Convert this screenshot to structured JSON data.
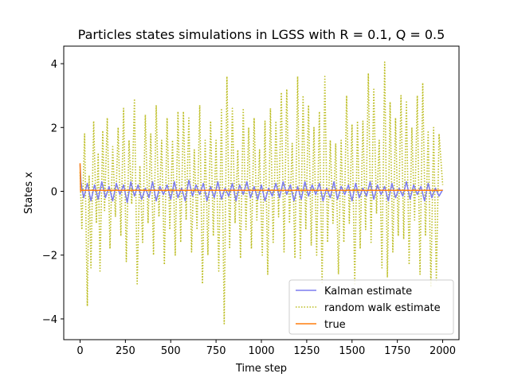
{
  "chart_data": {
    "type": "line",
    "title": "Particles states simulations in LGSS with R = 0.1, Q = 0.5",
    "xlabel": "Time step",
    "ylabel": "States x",
    "xlim": [
      -90,
      2090
    ],
    "ylim": [
      -4.65,
      4.55
    ],
    "xticks": [
      0,
      250,
      500,
      750,
      1000,
      1250,
      1500,
      1750,
      2000
    ],
    "xtick_labels": [
      "0",
      "250",
      "500",
      "750",
      "1000",
      "1250",
      "1500",
      "1750",
      "2000"
    ],
    "yticks": [
      -4,
      -2,
      0,
      2,
      4
    ],
    "ytick_labels": [
      "−4",
      "−2",
      "0",
      "2",
      "4"
    ],
    "grid": false,
    "legend_position": "lower-right",
    "series": [
      {
        "name": "Kalman estimate",
        "color": "#7b7bef",
        "style": "solid",
        "x": [
          0,
          5,
          10,
          20,
          40,
          60,
          80,
          100,
          120,
          140,
          160,
          180,
          200,
          220,
          240,
          260,
          280,
          300,
          320,
          340,
          360,
          380,
          400,
          420,
          440,
          460,
          480,
          500,
          520,
          540,
          560,
          580,
          600,
          620,
          640,
          660,
          680,
          700,
          720,
          740,
          760,
          780,
          800,
          820,
          840,
          860,
          880,
          900,
          920,
          940,
          960,
          980,
          1000,
          1020,
          1040,
          1060,
          1080,
          1100,
          1120,
          1140,
          1160,
          1180,
          1200,
          1220,
          1240,
          1260,
          1280,
          1300,
          1320,
          1340,
          1360,
          1380,
          1400,
          1420,
          1440,
          1460,
          1480,
          1500,
          1520,
          1540,
          1560,
          1580,
          1600,
          1620,
          1640,
          1660,
          1680,
          1700,
          1720,
          1740,
          1760,
          1780,
          1800,
          1820,
          1840,
          1860,
          1880,
          1900,
          1920,
          1940,
          1960,
          1980,
          2000
        ],
        "y": [
          0.85,
          0.3,
          0.1,
          -0.2,
          0.25,
          -0.3,
          0.2,
          -0.25,
          0.3,
          -0.2,
          0.15,
          -0.3,
          0.25,
          -0.1,
          0.2,
          -0.35,
          0.3,
          -0.15,
          0.2,
          -0.25,
          0.1,
          -0.2,
          0.3,
          -0.3,
          0.15,
          -0.1,
          0.2,
          -0.25,
          0.3,
          -0.2,
          0.1,
          -0.3,
          0.35,
          -0.15,
          0.2,
          -0.1,
          0.25,
          -0.3,
          0.15,
          -0.2,
          0.3,
          -0.25,
          0.1,
          -0.15,
          0.25,
          -0.3,
          0.2,
          -0.1,
          0.3,
          -0.2,
          0.15,
          -0.25,
          0.2,
          -0.3,
          0.1,
          -0.15,
          0.25,
          -0.2,
          0.3,
          -0.1,
          0.2,
          -0.3,
          0.15,
          -0.25,
          0.3,
          -0.15,
          0.2,
          -0.1,
          0.25,
          -0.3,
          0.1,
          -0.2,
          0.3,
          -0.25,
          0.15,
          -0.1,
          0.2,
          -0.3,
          0.25,
          -0.2,
          0.1,
          -0.15,
          0.3,
          -0.25,
          0.2,
          -0.1,
          0.15,
          -0.3,
          0.25,
          -0.2,
          0.1,
          -0.15,
          0.3,
          -0.25,
          0.2,
          -0.1,
          0.15,
          -0.3,
          0.25,
          -0.2,
          0.1,
          -0.15,
          0.05
        ]
      },
      {
        "name": "random walk estimate",
        "color": "#bcbd22",
        "style": "dotted",
        "x": [
          0,
          10,
          25,
          40,
          50,
          60,
          75,
          90,
          100,
          110,
          125,
          135,
          150,
          165,
          180,
          195,
          210,
          225,
          240,
          255,
          270,
          285,
          300,
          315,
          330,
          345,
          360,
          375,
          390,
          405,
          420,
          435,
          450,
          465,
          480,
          495,
          510,
          525,
          540,
          555,
          570,
          585,
          600,
          615,
          630,
          645,
          660,
          675,
          690,
          705,
          720,
          735,
          750,
          765,
          780,
          795,
          810,
          825,
          840,
          855,
          870,
          885,
          900,
          915,
          930,
          945,
          960,
          975,
          990,
          1005,
          1020,
          1035,
          1050,
          1065,
          1080,
          1095,
          1110,
          1125,
          1140,
          1155,
          1170,
          1185,
          1200,
          1215,
          1230,
          1245,
          1260,
          1275,
          1290,
          1305,
          1320,
          1335,
          1350,
          1365,
          1380,
          1395,
          1410,
          1425,
          1440,
          1455,
          1470,
          1485,
          1500,
          1515,
          1530,
          1545,
          1560,
          1575,
          1590,
          1605,
          1620,
          1635,
          1650,
          1665,
          1680,
          1695,
          1710,
          1725,
          1740,
          1755,
          1770,
          1785,
          1800,
          1815,
          1830,
          1845,
          1860,
          1875,
          1890,
          1905,
          1920,
          1935,
          1950,
          1965,
          1980,
          2000
        ],
        "y": [
          0.6,
          -1.2,
          1.8,
          -3.6,
          0.5,
          -2.4,
          2.2,
          -1.0,
          1.2,
          -2.5,
          1.9,
          -0.6,
          2.3,
          -1.8,
          1.4,
          -0.8,
          2.0,
          -1.4,
          2.6,
          -2.2,
          1.6,
          -0.4,
          2.9,
          -2.9,
          0.8,
          -1.6,
          2.4,
          -1.0,
          1.8,
          -2.0,
          2.7,
          -0.8,
          1.6,
          -2.3,
          2.3,
          -1.2,
          1.6,
          -2.0,
          2.5,
          -1.6,
          2.5,
          -0.9,
          2.3,
          -1.9,
          1.3,
          -1.2,
          2.7,
          -2.9,
          1.6,
          -2.0,
          2.2,
          -1.4,
          1.6,
          -2.5,
          2.6,
          -4.15,
          3.6,
          -1.8,
          2.6,
          -1.0,
          1.3,
          -2.1,
          2.6,
          -1.2,
          2.0,
          -1.8,
          2.3,
          -0.9,
          1.3,
          -2.0,
          2.2,
          -2.6,
          2.6,
          -1.6,
          2.2,
          -0.8,
          3.1,
          -1.9,
          3.2,
          -1.0,
          1.5,
          -2.1,
          3.6,
          -2.1,
          3.0,
          -1.2,
          2.7,
          -1.7,
          2.0,
          -2.0,
          2.5,
          -2.9,
          3.6,
          -1.6,
          1.6,
          -1.0,
          1.5,
          -2.6,
          1.6,
          -1.6,
          3.0,
          -1.0,
          2.1,
          -2.9,
          2.2,
          -1.8,
          2.2,
          -1.2,
          3.7,
          -1.6,
          3.2,
          -0.7,
          1.6,
          -2.4,
          4.05,
          -2.7,
          2.8,
          -1.9,
          2.3,
          -1.4,
          3.0,
          -1.5,
          2.8,
          -2.3,
          2.0,
          -0.9,
          3.0,
          -2.6,
          3.4,
          -1.4,
          1.9,
          -3.0,
          2.0,
          -2.8,
          1.8,
          0.2
        ]
      },
      {
        "name": "true",
        "color": "#ff7f0e",
        "style": "solid",
        "x": [
          0,
          3,
          6,
          2000
        ],
        "y": [
          0.88,
          0.0,
          0.03,
          0.03
        ]
      }
    ]
  }
}
